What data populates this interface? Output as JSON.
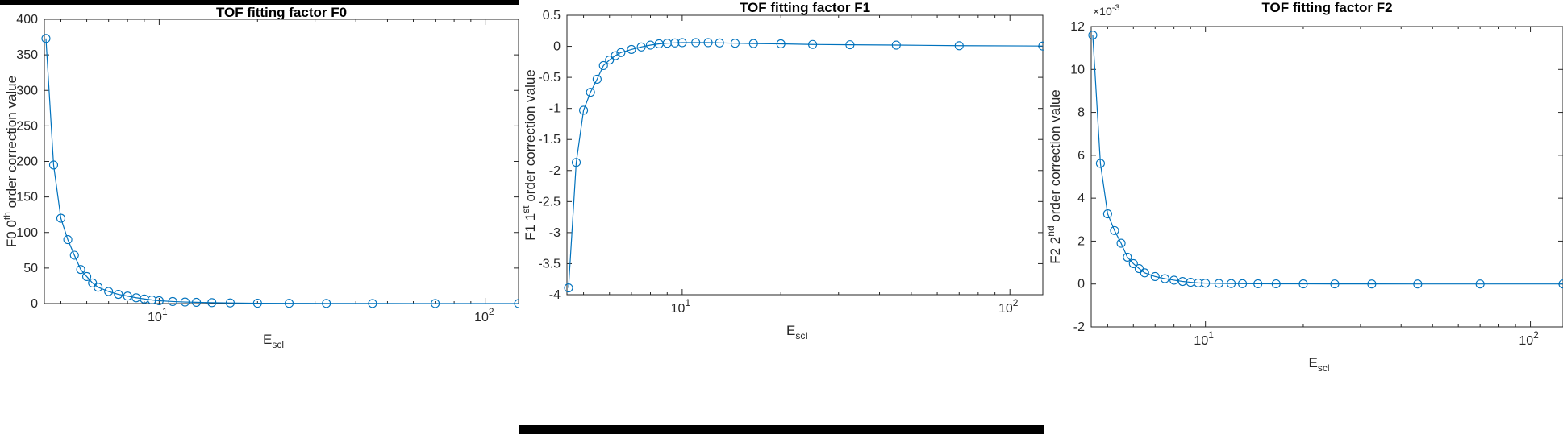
{
  "chart_data": [
    {
      "type": "line",
      "title": "TOF fitting factor F0",
      "xlabel": {
        "base": "E",
        "sub": "scl"
      },
      "ylabel": {
        "pre": "F0 0",
        "sup": "th",
        "post": " order correction value"
      },
      "xscale": "log",
      "xlim": [
        4.45,
        126
      ],
      "ylim": [
        0,
        400
      ],
      "yticks": [
        "0",
        "50",
        "100",
        "150",
        "200",
        "250",
        "300",
        "350",
        "400"
      ],
      "xticks": [
        {
          "value": 10,
          "base": "10",
          "exp": "1"
        },
        {
          "value": 100,
          "base": "10",
          "exp": "2"
        }
      ],
      "y_exponent": "",
      "marker": "circle",
      "color": "#0072BD",
      "grid": false,
      "x": [
        4.5,
        4.75,
        5.0,
        5.25,
        5.5,
        5.75,
        6.0,
        6.25,
        6.5,
        7.0,
        7.5,
        8.0,
        8.5,
        9.0,
        9.5,
        10.0,
        11.0,
        12.0,
        13.0,
        14.5,
        16.5,
        20.0,
        25.0,
        32.5,
        45.0,
        70.0,
        126.0
      ],
      "y": [
        373,
        195,
        120,
        90,
        68,
        48,
        38,
        29,
        23,
        17,
        13,
        10.5,
        8.2,
        6.5,
        5.1,
        4.0,
        2.9,
        2.2,
        1.8,
        1.3,
        0.9,
        0.5,
        0.3,
        0.2,
        0.1,
        0.05,
        0.02
      ]
    },
    {
      "type": "line",
      "title": "TOF fitting factor F1",
      "xlabel": {
        "base": "E",
        "sub": "scl"
      },
      "ylabel": {
        "pre": "F1 1",
        "sup": "st",
        "post": " order correction value"
      },
      "xscale": "log",
      "xlim": [
        4.45,
        126
      ],
      "ylim": [
        -4,
        0.5
      ],
      "yticks": [
        "-4",
        "-3.5",
        "-3",
        "-2.5",
        "-2",
        "-1.5",
        "-1",
        "-0.5",
        "0",
        "0.5"
      ],
      "xticks": [
        {
          "value": 10,
          "base": "10",
          "exp": "1"
        },
        {
          "value": 100,
          "base": "10",
          "exp": "2"
        }
      ],
      "y_exponent": "",
      "marker": "circle",
      "color": "#0072BD",
      "grid": false,
      "x": [
        4.5,
        4.75,
        5.0,
        5.25,
        5.5,
        5.75,
        6.0,
        6.25,
        6.5,
        7.0,
        7.5,
        8.0,
        8.5,
        9.0,
        9.5,
        10.0,
        11.0,
        12.0,
        13.0,
        14.5,
        16.5,
        20.0,
        25.0,
        32.5,
        45.0,
        70.0,
        126.0
      ],
      "y": [
        -3.89,
        -1.87,
        -1.03,
        -0.74,
        -0.53,
        -0.31,
        -0.22,
        -0.15,
        -0.1,
        -0.05,
        -0.01,
        0.02,
        0.04,
        0.05,
        0.055,
        0.06,
        0.06,
        0.06,
        0.055,
        0.05,
        0.045,
        0.04,
        0.03,
        0.025,
        0.02,
        0.01,
        0.005
      ]
    },
    {
      "type": "line",
      "title": "TOF fitting factor F2",
      "xlabel": {
        "base": "E",
        "sub": "scl"
      },
      "ylabel": {
        "pre": "F2 2",
        "sup": "nd",
        "post": " order correction value"
      },
      "xscale": "log",
      "xlim": [
        4.45,
        126
      ],
      "ylim": [
        -2,
        12
      ],
      "yticks": [
        "-2",
        "0",
        "2",
        "4",
        "6",
        "8",
        "10",
        "12"
      ],
      "xticks": [
        {
          "value": 10,
          "base": "10",
          "exp": "1"
        },
        {
          "value": 100,
          "base": "10",
          "exp": "2"
        }
      ],
      "y_exponent": "×10-3",
      "y_exponent_parts": {
        "base": "×10",
        "exp": "-3"
      },
      "marker": "circle",
      "color": "#0072BD",
      "grid": false,
      "x": [
        4.5,
        4.75,
        5.0,
        5.25,
        5.5,
        5.75,
        6.0,
        6.25,
        6.5,
        7.0,
        7.5,
        8.0,
        8.5,
        9.0,
        9.5,
        10.0,
        11.0,
        12.0,
        13.0,
        14.5,
        16.5,
        20.0,
        25.0,
        32.5,
        45.0,
        70.0,
        126.0
      ],
      "y": [
        11.6,
        5.62,
        3.27,
        2.49,
        1.9,
        1.25,
        0.95,
        0.72,
        0.52,
        0.35,
        0.25,
        0.18,
        0.12,
        0.08,
        0.05,
        0.04,
        0.03,
        0.02,
        0.015,
        0.01,
        0.008,
        0.005,
        0.003,
        0.002,
        0.001,
        0.0005,
        0.0002
      ]
    }
  ]
}
